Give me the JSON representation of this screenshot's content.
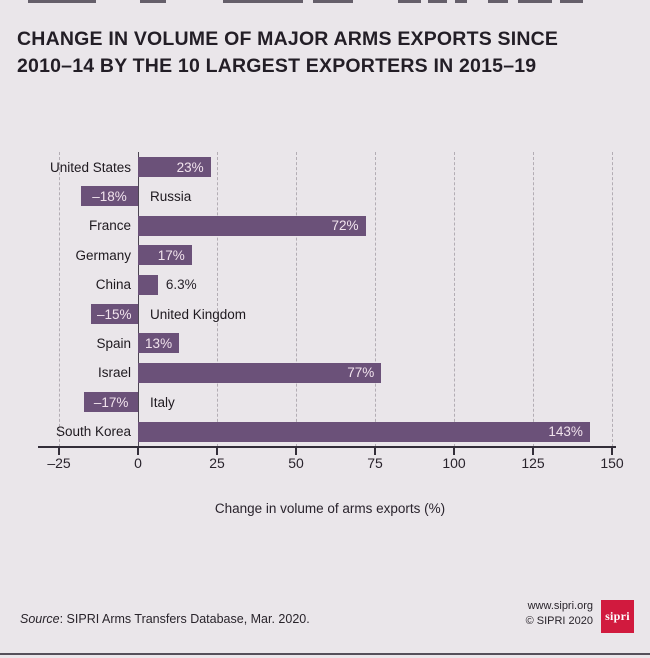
{
  "page": {
    "title_line1": "CHANGE IN VOLUME OF MAJOR ARMS EXPORTS SINCE",
    "title_line2": "2010–14 BY THE 10 LARGEST EXPORTERS IN 2015–19"
  },
  "chart_data": {
    "type": "bar",
    "orientation": "horizontal",
    "categories": [
      "United States",
      "Russia",
      "France",
      "Germany",
      "China",
      "United Kingdom",
      "Spain",
      "Israel",
      "Italy",
      "South Korea"
    ],
    "values": [
      23,
      -18,
      72,
      17,
      6.3,
      -15,
      13,
      77,
      -17,
      143
    ],
    "value_labels": [
      "23%",
      "–18%",
      "72%",
      "17%",
      "6.3%",
      "–15%",
      "13%",
      "77%",
      "–17%",
      "143%"
    ],
    "xlabel": "Change in volume of arms exports (%)",
    "xlim": [
      -25,
      150
    ],
    "xticks": [
      -25,
      0,
      25,
      50,
      75,
      100,
      125,
      150
    ],
    "xtick_labels": [
      "–25",
      "0",
      "25",
      "50",
      "75",
      "100",
      "125",
      "150"
    ],
    "grid": "dashed vertical gridlines at each tick, solid zero line",
    "legend": "none",
    "bar_color": "#6b5179",
    "value_label_color_inside": "#f1e3ed",
    "value_label_rule": "labels inside bars; small bars (China) labelled outside in dark text; negative bars labelled inside with category name right of zero axis"
  },
  "footer": {
    "source_prefix": "Source",
    "source_rest": ": SIPRI Arms Transfers Database, Mar. 2020.",
    "website": "www.sipri.org",
    "copyright": "© SIPRI 2020",
    "logo_text": "sipri",
    "logo_color": "#d11a3e"
  },
  "colors": {
    "background": "#eae6ea",
    "title_text": "#231e26",
    "axis": "#332e39",
    "gridline": "#b3adb4"
  }
}
